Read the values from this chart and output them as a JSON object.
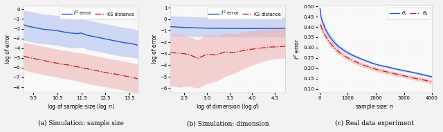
{
  "fig_width": 6.4,
  "fig_height": 1.91,
  "dpi": 100,
  "fig_facecolor": "#f2f2f2",
  "ax_facecolor": "#f8f8f8",
  "panel_a": {
    "x_min": 9.1,
    "x_max": 13.85,
    "y_min": -8.6,
    "y_max": 0.4,
    "xlabel": "log of sample size (log $n$)",
    "ylabel": "log of error",
    "caption": "(a) Simulation: sample size",
    "blue_x": [
      9.1,
      9.3,
      9.5,
      9.7,
      9.9,
      10.1,
      10.3,
      10.5,
      10.7,
      10.9,
      11.1,
      11.3,
      11.5,
      11.7,
      11.9,
      12.1,
      12.3,
      12.5,
      12.7,
      12.9,
      13.1,
      13.3,
      13.5,
      13.7,
      13.85
    ],
    "blue_mean": [
      -1.6,
      -1.75,
      -1.85,
      -1.95,
      -2.05,
      -2.1,
      -2.15,
      -2.2,
      -2.3,
      -2.4,
      -2.45,
      -2.5,
      -2.45,
      -2.65,
      -2.75,
      -2.85,
      -2.95,
      -3.05,
      -3.15,
      -3.25,
      -3.35,
      -3.45,
      -3.5,
      -3.6,
      -3.7
    ],
    "blue_lo": [
      -3.2,
      -3.3,
      -3.4,
      -3.5,
      -3.55,
      -3.6,
      -3.65,
      -3.7,
      -3.8,
      -3.9,
      -3.95,
      -4.0,
      -3.9,
      -4.1,
      -4.2,
      -4.3,
      -4.4,
      -4.5,
      -4.6,
      -4.7,
      -4.8,
      -4.85,
      -4.9,
      -5.0,
      -5.1
    ],
    "blue_hi": [
      -0.1,
      -0.2,
      -0.3,
      -0.4,
      -0.5,
      -0.55,
      -0.6,
      -0.65,
      -0.75,
      -0.85,
      -0.9,
      -0.95,
      -0.9,
      -1.1,
      -1.2,
      -1.3,
      -1.4,
      -1.5,
      -1.6,
      -1.7,
      -1.8,
      -1.9,
      -1.95,
      -2.05,
      -2.15
    ],
    "red_x": [
      9.1,
      9.3,
      9.5,
      9.7,
      9.9,
      10.1,
      10.3,
      10.5,
      10.7,
      10.9,
      11.1,
      11.3,
      11.5,
      11.7,
      11.9,
      12.1,
      12.3,
      12.5,
      12.7,
      12.9,
      13.1,
      13.3,
      13.5,
      13.7,
      13.85
    ],
    "red_mean": [
      -4.8,
      -4.95,
      -5.05,
      -5.15,
      -5.25,
      -5.35,
      -5.45,
      -5.55,
      -5.65,
      -5.7,
      -5.8,
      -5.9,
      -6.0,
      -6.1,
      -6.2,
      -6.3,
      -6.4,
      -6.5,
      -6.6,
      -6.65,
      -6.75,
      -6.85,
      -6.95,
      -7.05,
      -7.15
    ],
    "red_lo": [
      -6.2,
      -6.4,
      -6.5,
      -6.6,
      -6.7,
      -6.8,
      -6.9,
      -7.0,
      -7.1,
      -7.15,
      -7.25,
      -7.35,
      -7.5,
      -7.6,
      -7.7,
      -7.8,
      -7.9,
      -8.0,
      -8.1,
      -8.15,
      -8.25,
      -8.35,
      -8.45,
      -8.55,
      -8.6
    ],
    "red_hi": [
      -3.4,
      -3.5,
      -3.6,
      -3.7,
      -3.8,
      -3.9,
      -4.0,
      -4.1,
      -4.2,
      -4.25,
      -4.35,
      -4.45,
      -4.5,
      -4.6,
      -4.7,
      -4.8,
      -4.9,
      -5.0,
      -5.1,
      -5.15,
      -5.25,
      -5.35,
      -5.45,
      -5.55,
      -5.65
    ],
    "xticks": [
      9.5,
      10.5,
      11.5,
      12.5,
      13.5
    ]
  },
  "panel_b": {
    "x_min": 2.2,
    "x_max": 4.72,
    "y_min": -6.4,
    "y_max": 1.2,
    "xlabel": "log of dimension (log $d$)",
    "ylabel": "log of error",
    "caption": "(b) Simulation: dimension",
    "blue_x": [
      2.2,
      2.4,
      2.6,
      2.8,
      3.0,
      3.2,
      3.4,
      3.6,
      3.8,
      4.0,
      4.2,
      4.4,
      4.6,
      4.72
    ],
    "blue_mean": [
      -0.65,
      -0.7,
      -0.73,
      -0.76,
      -0.78,
      -0.79,
      -0.8,
      -0.8,
      -0.81,
      -0.81,
      -0.81,
      -0.8,
      -0.8,
      -0.79
    ],
    "blue_lo": [
      -1.4,
      -1.45,
      -1.48,
      -1.51,
      -1.53,
      -1.54,
      -1.55,
      -1.55,
      -1.56,
      -1.56,
      -1.56,
      -1.55,
      -1.55,
      -1.54
    ],
    "blue_hi": [
      0.3,
      0.25,
      0.22,
      0.19,
      0.17,
      0.16,
      0.15,
      0.15,
      0.14,
      0.14,
      0.14,
      0.15,
      0.15,
      0.16
    ],
    "red_x": [
      2.2,
      2.4,
      2.6,
      2.8,
      3.0,
      3.2,
      3.4,
      3.6,
      3.8,
      4.0,
      4.2,
      4.4,
      4.6,
      4.72
    ],
    "red_mean": [
      -2.9,
      -2.95,
      -3.05,
      -3.4,
      -3.05,
      -3.1,
      -2.85,
      -2.9,
      -2.72,
      -2.6,
      -2.5,
      -2.42,
      -2.38,
      -2.35
    ],
    "red_lo": [
      -5.8,
      -5.9,
      -5.8,
      -6.0,
      -5.6,
      -5.4,
      -5.0,
      -4.7,
      -4.3,
      -4.0,
      -3.7,
      -3.5,
      -3.4,
      -3.35
    ],
    "red_hi": [
      -1.3,
      -1.3,
      -1.5,
      -1.8,
      -1.35,
      -1.45,
      -1.2,
      -1.3,
      -1.1,
      -1.0,
      -0.9,
      -0.8,
      -0.75,
      -0.72
    ],
    "xticks": [
      2.5,
      3.0,
      3.5,
      4.0,
      4.5
    ]
  },
  "panel_c": {
    "x_min": -80,
    "x_max": 4000,
    "y_min": 0.08,
    "y_max": 0.505,
    "xlabel": "sample size: $n$",
    "ylabel": "$\\ell^2$ error",
    "caption": "(c) Real data experiment",
    "blue_x": [
      10,
      50,
      100,
      200,
      300,
      400,
      500,
      600,
      700,
      800,
      900,
      1000,
      1200,
      1400,
      1600,
      1800,
      2000,
      2200,
      2400,
      2600,
      2800,
      3000,
      3200,
      3400,
      3600,
      3800,
      4000
    ],
    "blue_mean": [
      0.49,
      0.445,
      0.425,
      0.39,
      0.365,
      0.345,
      0.328,
      0.314,
      0.302,
      0.293,
      0.283,
      0.275,
      0.261,
      0.249,
      0.238,
      0.228,
      0.219,
      0.212,
      0.207,
      0.2,
      0.194,
      0.188,
      0.183,
      0.177,
      0.171,
      0.165,
      0.158
    ],
    "blue_lo": [
      0.465,
      0.425,
      0.408,
      0.375,
      0.35,
      0.332,
      0.316,
      0.303,
      0.292,
      0.283,
      0.274,
      0.266,
      0.253,
      0.242,
      0.232,
      0.222,
      0.213,
      0.206,
      0.2,
      0.194,
      0.188,
      0.182,
      0.177,
      0.171,
      0.165,
      0.159,
      0.152
    ],
    "blue_hi": [
      0.51,
      0.465,
      0.443,
      0.406,
      0.38,
      0.36,
      0.342,
      0.326,
      0.313,
      0.303,
      0.293,
      0.284,
      0.269,
      0.257,
      0.246,
      0.235,
      0.225,
      0.218,
      0.213,
      0.206,
      0.2,
      0.194,
      0.189,
      0.183,
      0.177,
      0.171,
      0.164
    ],
    "red_x": [
      10,
      50,
      100,
      200,
      300,
      400,
      500,
      600,
      700,
      800,
      900,
      1000,
      1200,
      1400,
      1600,
      1800,
      2000,
      2200,
      2400,
      2600,
      2800,
      3000,
      3200,
      3400,
      3600,
      3800,
      4000
    ],
    "red_mean": [
      0.412,
      0.403,
      0.385,
      0.358,
      0.335,
      0.318,
      0.302,
      0.289,
      0.277,
      0.267,
      0.258,
      0.25,
      0.236,
      0.224,
      0.213,
      0.204,
      0.195,
      0.188,
      0.182,
      0.175,
      0.169,
      0.163,
      0.157,
      0.151,
      0.146,
      0.14,
      0.134
    ],
    "red_lo": [
      0.39,
      0.382,
      0.365,
      0.34,
      0.318,
      0.302,
      0.287,
      0.275,
      0.264,
      0.254,
      0.245,
      0.237,
      0.224,
      0.212,
      0.202,
      0.193,
      0.184,
      0.177,
      0.171,
      0.165,
      0.159,
      0.153,
      0.147,
      0.141,
      0.136,
      0.13,
      0.124
    ],
    "red_hi": [
      0.435,
      0.424,
      0.405,
      0.376,
      0.352,
      0.334,
      0.318,
      0.303,
      0.29,
      0.28,
      0.271,
      0.263,
      0.248,
      0.236,
      0.225,
      0.215,
      0.206,
      0.199,
      0.193,
      0.186,
      0.18,
      0.174,
      0.168,
      0.162,
      0.157,
      0.151,
      0.145
    ],
    "xticks": [
      0,
      1000,
      2000,
      3000,
      4000
    ]
  },
  "blue_color": "#2255cc",
  "red_color": "#cc2222",
  "blue_fill_color": "#aabbee",
  "red_fill_color": "#eeb0b0",
  "fill_alpha": 0.55,
  "line_lw": 1.0,
  "legend_label_blue_ab": "$\\ell^2$ error",
  "legend_label_red_ab": "KS distance",
  "legend_label_blue_c": "$\\widetilde{\\theta}_\\lambda$",
  "legend_label_red_c": "$\\widetilde{\\theta}_\\lambda$"
}
